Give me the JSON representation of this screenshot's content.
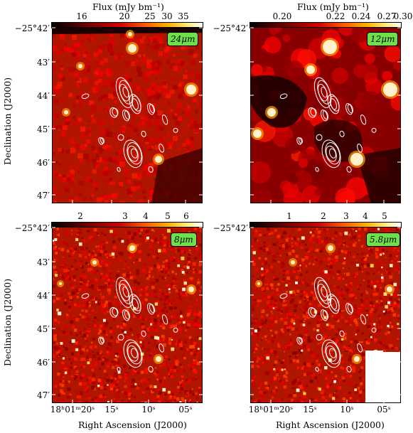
{
  "panels": [
    {
      "id": "p24",
      "badge": "24μm",
      "colorbar_title": "Flux (mJy bm⁻¹)",
      "colorbar_ticks": [
        "16",
        "20",
        "25",
        "30",
        "35"
      ],
      "cmap_seed": 1,
      "style": "smooth-red",
      "white_block": false
    },
    {
      "id": "p12",
      "badge": "12μm",
      "colorbar_title": "Flux (mJy bm⁻¹)",
      "colorbar_ticks": [
        "0.20",
        "0.22",
        "0.24",
        "0.27",
        "0.30"
      ],
      "cmap_seed": 2,
      "style": "blobby",
      "white_block": false
    },
    {
      "id": "p8",
      "badge": "8μm",
      "colorbar_title": "",
      "colorbar_ticks": [
        "2",
        "3",
        "4",
        "5",
        "6"
      ],
      "cmap_seed": 3,
      "style": "speckled",
      "white_block": false
    },
    {
      "id": "p58",
      "badge": "5.8μm",
      "colorbar_title": "",
      "colorbar_ticks": [
        "1",
        "2",
        "3",
        "4",
        "5"
      ],
      "cmap_seed": 4,
      "style": "speckled",
      "white_block": true
    }
  ],
  "y_axis": {
    "title": "Declination (J2000)",
    "ticks": [
      "−25°42′",
      "43′",
      "44′",
      "45′",
      "46′",
      "47′"
    ]
  },
  "x_axis": {
    "title": "Right Ascension (J2000)",
    "ticks": [
      "18ʰ01ᵐ20ˢ",
      "15ˢ",
      "10ˢ",
      "05ˢ"
    ]
  },
  "colors": {
    "contour": "#ffffff",
    "badge_bg": "#6ee04a"
  }
}
